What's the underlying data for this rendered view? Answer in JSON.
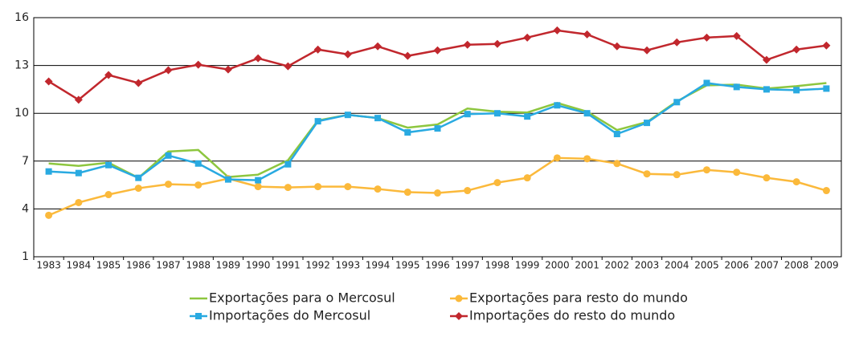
{
  "chart_data": {
    "type": "line",
    "categories": [
      "1983",
      "1984",
      "1985",
      "1986",
      "1987",
      "1988",
      "1989",
      "1990",
      "1991",
      "1992",
      "1993",
      "1994",
      "1995",
      "1996",
      "1997",
      "1998",
      "1999",
      "2000",
      "2001",
      "2002",
      "2003",
      "2004",
      "2005",
      "2006",
      "2007",
      "2008",
      "2009"
    ],
    "ylim": [
      1,
      16
    ],
    "yticks": [
      1,
      4,
      7,
      10,
      13,
      16
    ],
    "grid": true,
    "series": [
      {
        "name": "Exportações para o Mercosul",
        "color": "#8dc63f",
        "marker": "none",
        "values": [
          6.85,
          6.7,
          6.9,
          5.95,
          7.6,
          7.7,
          6.0,
          6.15,
          7.05,
          9.55,
          9.9,
          9.7,
          9.1,
          9.3,
          10.3,
          10.1,
          10.05,
          10.65,
          10.1,
          8.95,
          9.45,
          10.75,
          11.75,
          11.8,
          11.55,
          11.7,
          11.9
        ]
      },
      {
        "name": "Exportações para resto do mundo",
        "color": "#fbb93b",
        "marker": "circle",
        "values": [
          3.6,
          4.4,
          4.9,
          5.3,
          5.55,
          5.5,
          5.9,
          5.4,
          5.35,
          5.4,
          5.4,
          5.25,
          5.05,
          5.0,
          5.15,
          5.65,
          5.95,
          7.2,
          7.15,
          6.85,
          6.2,
          6.15,
          6.45,
          6.3,
          5.95,
          5.7,
          5.15
        ]
      },
      {
        "name": "Importações do Mercosul",
        "color": "#29aae1",
        "marker": "square",
        "values": [
          6.35,
          6.25,
          6.75,
          5.95,
          7.35,
          6.85,
          5.85,
          5.8,
          6.8,
          9.5,
          9.9,
          9.7,
          8.8,
          9.05,
          9.95,
          10.0,
          9.8,
          10.5,
          10.0,
          8.7,
          9.4,
          10.7,
          11.9,
          11.65,
          11.5,
          11.45,
          11.55
        ]
      },
      {
        "name": "Importações do resto do mundo",
        "color": "#c1272d",
        "marker": "diamond",
        "values": [
          12.0,
          10.85,
          12.4,
          11.9,
          12.7,
          13.05,
          12.75,
          13.45,
          12.95,
          14.0,
          13.7,
          14.2,
          13.6,
          13.95,
          14.3,
          14.35,
          14.75,
          15.2,
          14.95,
          14.2,
          13.95,
          14.45,
          14.75,
          14.85,
          13.35,
          14.0,
          14.25
        ]
      }
    ]
  }
}
